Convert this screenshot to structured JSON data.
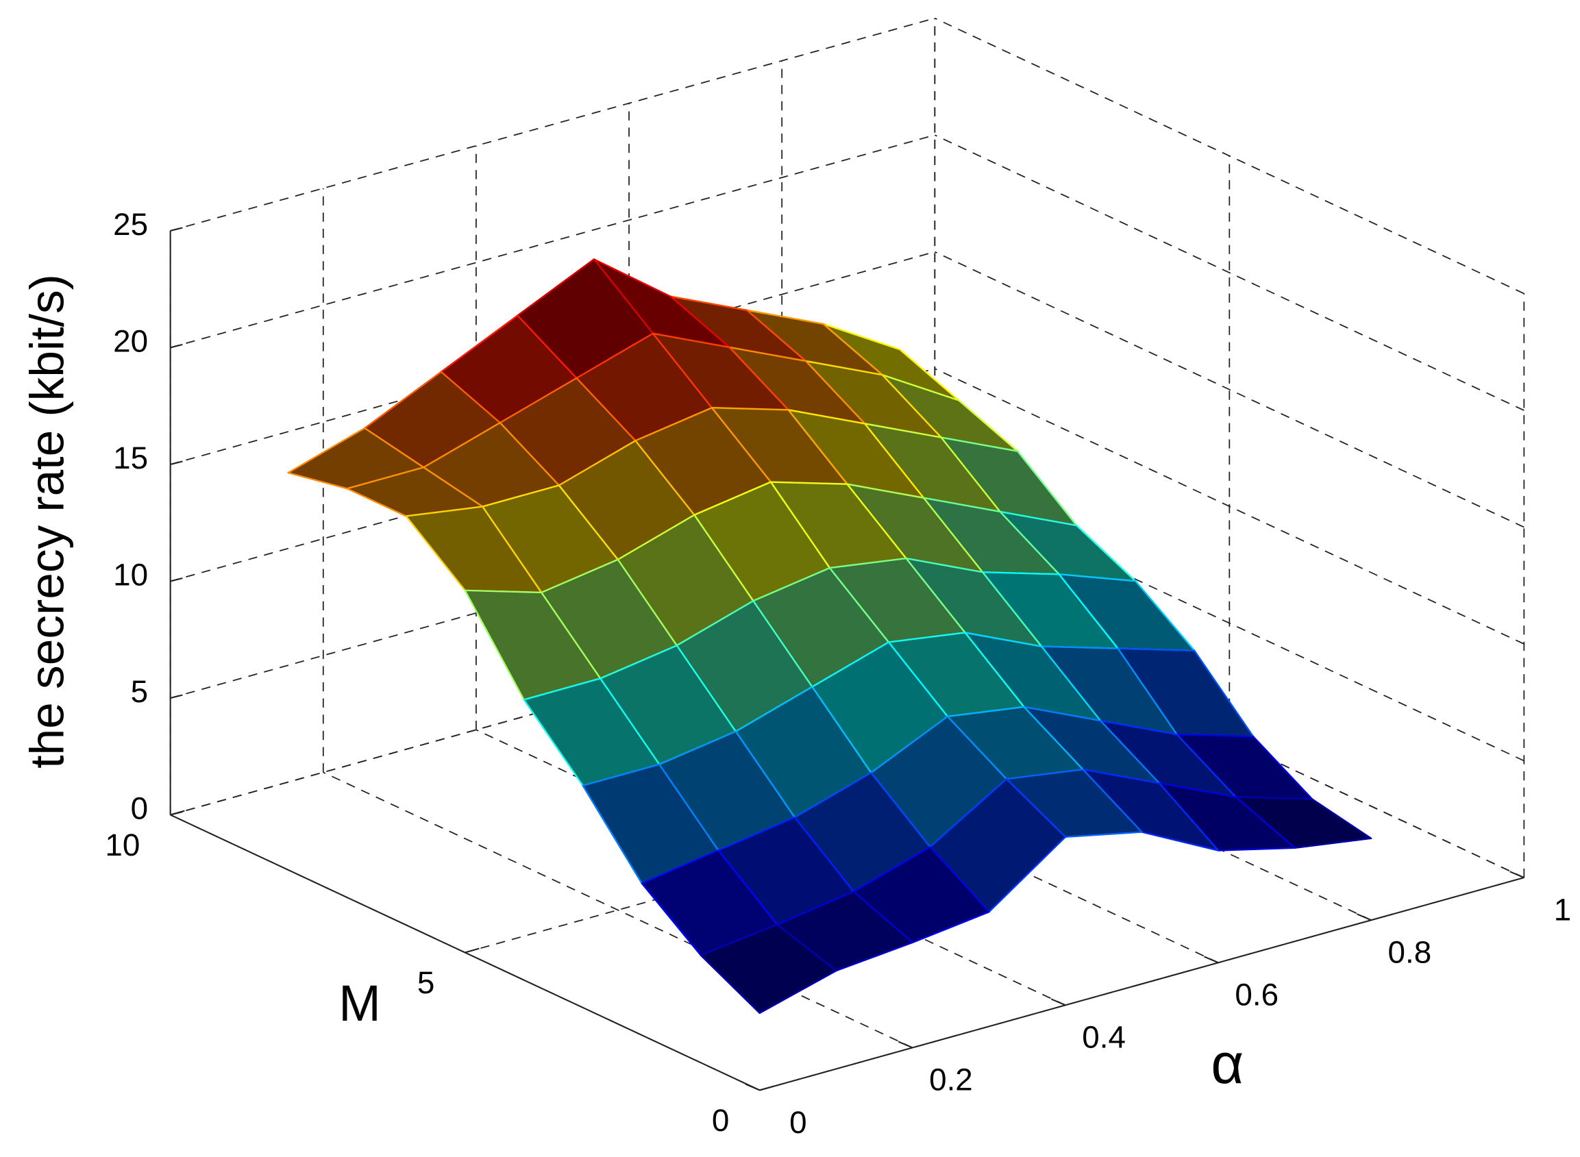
{
  "chart_data": {
    "type": "surface",
    "xlabel": "α",
    "ylabel": "M",
    "zlabel": "the secrecy rate (kbit/s)",
    "colormap": "jet",
    "grid": true,
    "x": [
      0,
      0.1,
      0.2,
      0.3,
      0.4,
      0.5,
      0.6,
      0.7,
      0.8
    ],
    "y": [
      0,
      1,
      2,
      3,
      4,
      5,
      6,
      7,
      8
    ],
    "z": [
      [
        3.3,
        4.2,
        4.5,
        4.9,
        7.2,
        6.5,
        4.8,
        4.0,
        3.5
      ],
      [
        4.6,
        5.0,
        5.5,
        6.5,
        8.5,
        8.0,
        6.5,
        5.0,
        4.0
      ],
      [
        6.5,
        7.0,
        7.5,
        8.5,
        10.0,
        9.5,
        8.0,
        6.5,
        5.5
      ],
      [
        9.5,
        9.5,
        10.0,
        11.0,
        12.0,
        11.5,
        10.0,
        9.0,
        8.0
      ],
      [
        12.0,
        12.0,
        12.5,
        13.5,
        14.0,
        13.5,
        12.0,
        11.0,
        9.8
      ],
      [
        15.5,
        14.5,
        15.0,
        16.0,
        16.5,
        15.5,
        14.0,
        12.5,
        11.0
      ],
      [
        17.5,
        17.0,
        17.0,
        18.0,
        18.5,
        17.5,
        16.0,
        14.5,
        13.0
      ],
      [
        17.5,
        17.5,
        18.5,
        19.5,
        20.5,
        19.0,
        17.5,
        16.0,
        14.0
      ],
      [
        17.0,
        18.0,
        19.5,
        21.0,
        22.5,
        20.0,
        18.5,
        17.0,
        15.0
      ]
    ],
    "xlim": [
      0,
      1
    ],
    "ylim": [
      0,
      10
    ],
    "zlim": [
      0,
      25
    ],
    "xticks": [
      0,
      0.2,
      0.4,
      0.6,
      0.8,
      1
    ],
    "yticks": [
      0,
      5,
      10
    ],
    "zticks": [
      0,
      5,
      10,
      15,
      20,
      25
    ]
  }
}
